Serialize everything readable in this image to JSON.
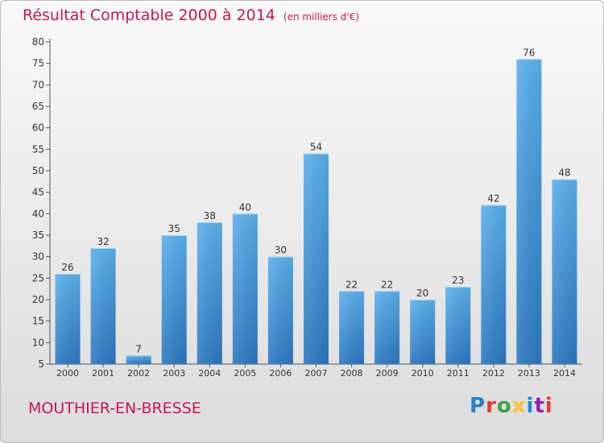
{
  "chart_data": {
    "type": "bar",
    "title": "Résultat Comptable 2000 à 2014",
    "subtitle": "(en milliers d'€)",
    "categories": [
      "2000",
      "2001",
      "2002",
      "2003",
      "2004",
      "2005",
      "2006",
      "2007",
      "2008",
      "2009",
      "2010",
      "2011",
      "2012",
      "2013",
      "2014"
    ],
    "values": [
      26,
      32,
      7,
      35,
      38,
      40,
      30,
      54,
      22,
      22,
      20,
      23,
      42,
      76,
      48
    ],
    "ylim": [
      5,
      80
    ],
    "yticks": [
      5,
      10,
      15,
      20,
      25,
      30,
      35,
      40,
      45,
      50,
      55,
      60,
      65,
      70,
      75,
      80
    ],
    "xlabel": "",
    "ylabel": "",
    "grid": false,
    "bar_color": "#3d8fd6"
  },
  "footer": {
    "town": "MOUTHIER-EN-BRESSE",
    "logo_text": "Proxiti"
  },
  "colors": {
    "title": "#c2185b",
    "logo": [
      "#2a7fc9",
      "#e53935",
      "#43a047",
      "#fbc02d",
      "#1e88e5",
      "#8e24aa",
      "#e53935"
    ]
  }
}
